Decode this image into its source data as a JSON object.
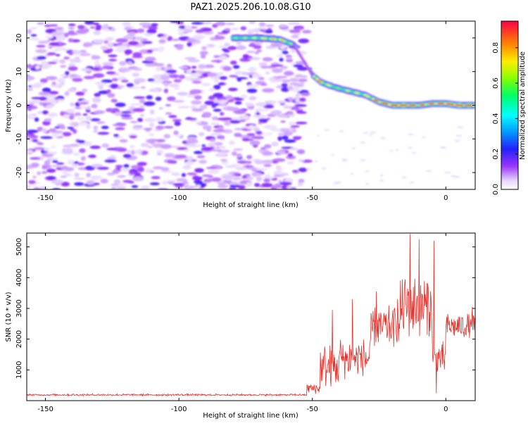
{
  "title": "PAZ1.2025.206.10.08.G10",
  "chart_data": [
    {
      "type": "heatmap",
      "xlabel": "Height of straight line (km)",
      "ylabel": "Frequency (Hz)",
      "xlim": [
        -157,
        11
      ],
      "ylim": [
        -25,
        25
      ],
      "xticks": [
        -150,
        -100,
        -50,
        0
      ],
      "yticks": [
        -20,
        -10,
        0,
        10,
        20
      ],
      "colorbar": {
        "label": "Normalized spectral amplitude",
        "range": [
          0,
          0.95
        ],
        "ticks": [
          0.0,
          0.2,
          0.4,
          0.6,
          0.8
        ],
        "tick_labels": [
          "0.0",
          "0.2",
          "0.4",
          "0.6",
          "0.8"
        ]
      },
      "ridge": {
        "x": [
          -80,
          -70,
          -62,
          -57,
          -53,
          -50,
          -47,
          -44,
          -40,
          -35,
          -30,
          -25,
          -20,
          -15,
          -10,
          -5,
          0,
          5,
          11
        ],
        "y": [
          20,
          20,
          19.5,
          18,
          15,
          9,
          7,
          6,
          5,
          4,
          3,
          1,
          0,
          0,
          0,
          0.5,
          0.5,
          0,
          0
        ],
        "amplitude": [
          0.3,
          0.35,
          0.4,
          0.3,
          0.35,
          0.45,
          0.4,
          0.35,
          0.3,
          0.35,
          0.35,
          0.45,
          0.5,
          0.55,
          0.45,
          0.45,
          0.5,
          0.55,
          0.5
        ]
      },
      "background_noise_x_range": [
        -157,
        -52
      ],
      "grid": false
    },
    {
      "type": "line",
      "xlabel": "Height of straight line (km)",
      "ylabel": "SNR (10 * v/v)",
      "xlim": [
        -157,
        11
      ],
      "ylim": [
        0,
        5450
      ],
      "xticks": [
        -150,
        -100,
        -50,
        0
      ],
      "yticks": [
        1000,
        2000,
        3000,
        4000,
        5000
      ],
      "color": "#e8302a",
      "grid": false,
      "segments": [
        {
          "x0": -157,
          "x1": -52,
          "base": 180,
          "amp": 70
        },
        {
          "x0": -52,
          "x1": -47,
          "base": 350,
          "amp": 400
        },
        {
          "x0": -47,
          "x1": -40,
          "base": 900,
          "amp": 1500
        },
        {
          "x0": -40,
          "x1": -28,
          "base": 1200,
          "amp": 1500
        },
        {
          "x0": -28,
          "x1": -17,
          "base": 2200,
          "amp": 1400
        },
        {
          "x0": -17,
          "x1": -5,
          "base": 2800,
          "amp": 2300
        },
        {
          "x0": -5,
          "x1": 0,
          "base": 1200,
          "amp": 1200
        },
        {
          "x0": 0,
          "x1": 11,
          "base": 2300,
          "amp": 900
        }
      ],
      "peaks": [
        {
          "x": -42.5,
          "y": 2950
        },
        {
          "x": -35,
          "y": 3300
        },
        {
          "x": -26,
          "y": 3550
        },
        {
          "x": -18,
          "y": 3300
        },
        {
          "x": -13.5,
          "y": 5420
        },
        {
          "x": -10,
          "y": 5250
        },
        {
          "x": -4.5,
          "y": 5200
        },
        {
          "x": -3.5,
          "y": 240
        },
        {
          "x": 10,
          "y": 3050
        }
      ]
    }
  ]
}
